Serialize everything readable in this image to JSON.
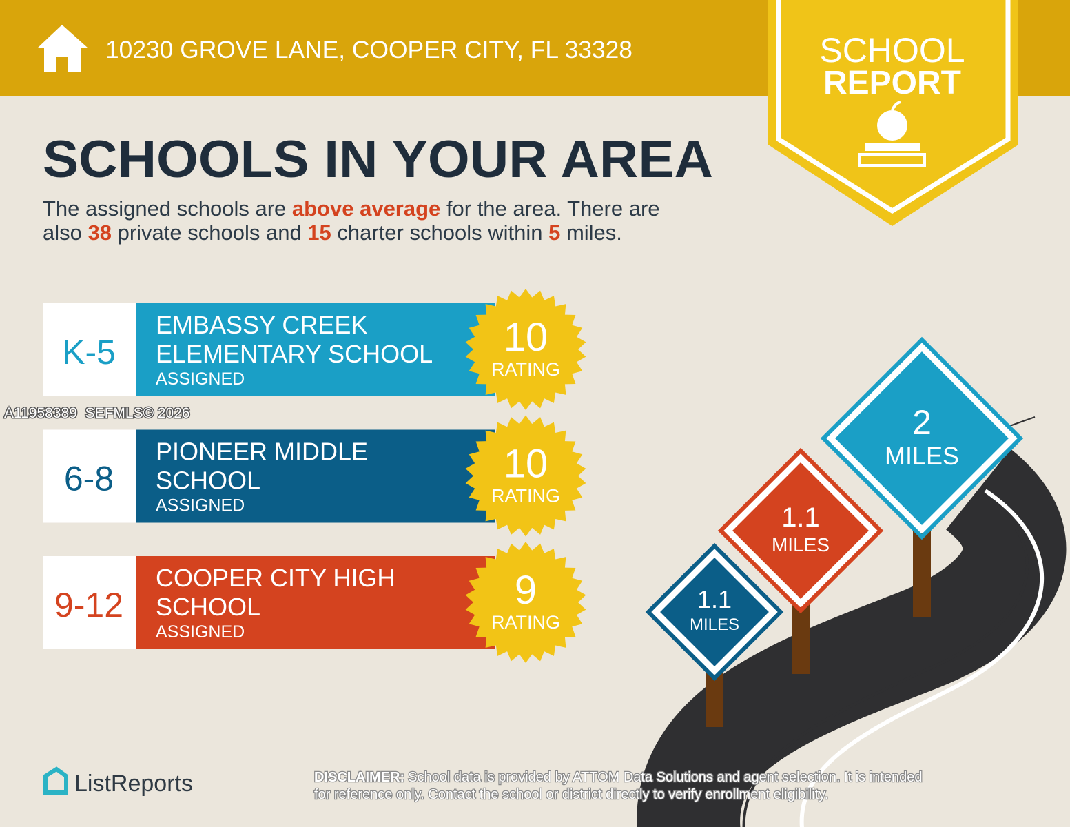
{
  "header": {
    "address": "10230 GROVE LANE, COOPER CITY, FL 33328"
  },
  "badge": {
    "lines": [
      "SCHOOL",
      "REPORT"
    ]
  },
  "title": "SCHOOLS IN YOUR AREA",
  "summary": {
    "lines": [
      [
        {
          "text": "The assigned schools are ",
          "highlight": false
        },
        {
          "text": "above average",
          "highlight": true
        },
        {
          "text": " for the area. There are",
          "highlight": false
        }
      ],
      [
        {
          "text": "also ",
          "highlight": false
        },
        {
          "text": "38",
          "highlight": true
        },
        {
          "text": " private schools and ",
          "highlight": false
        },
        {
          "text": "15",
          "highlight": true
        },
        {
          "text": " charter schools within ",
          "highlight": false
        },
        {
          "text": "5",
          "highlight": true
        },
        {
          "text": " miles.",
          "highlight": false
        }
      ]
    ]
  },
  "schools": [
    {
      "grades": "K-5",
      "name_lines": [
        "EMBASSY CREEK",
        "ELEMENTARY SCHOOL"
      ],
      "status": "ASSIGNED",
      "rating": 10,
      "rating_label": "RATING",
      "color": "#1a9fc6"
    },
    {
      "grades": "6-8",
      "name_lines": [
        "PIONEER MIDDLE",
        "SCHOOL"
      ],
      "status": "ASSIGNED",
      "rating": 10,
      "rating_label": "RATING",
      "color": "#0b5e88"
    },
    {
      "grades": "9-12",
      "name_lines": [
        "COOPER CITY HIGH",
        "SCHOOL"
      ],
      "status": "ASSIGNED",
      "rating": 9,
      "rating_label": "RATING",
      "color": "#d4431f"
    }
  ],
  "watermark": "A11958389  SEFMLS© 2026",
  "signs": [
    {
      "value": "2",
      "unit": "MILES",
      "color": "#1a9fc6"
    },
    {
      "value": "1.1",
      "unit": "MILES",
      "color": "#d4431f"
    },
    {
      "value": "1.1",
      "unit": "MILES",
      "color": "#0b5e88"
    }
  ],
  "logo": "ListReports",
  "disclaimer": {
    "label": "DISCLAIMER:",
    "lines": [
      "School data is provided by ATTOM Data Solutions and agent selection. It is intended",
      "for reference only. Contact the school or district directly to verify enrollment eligibility."
    ]
  }
}
